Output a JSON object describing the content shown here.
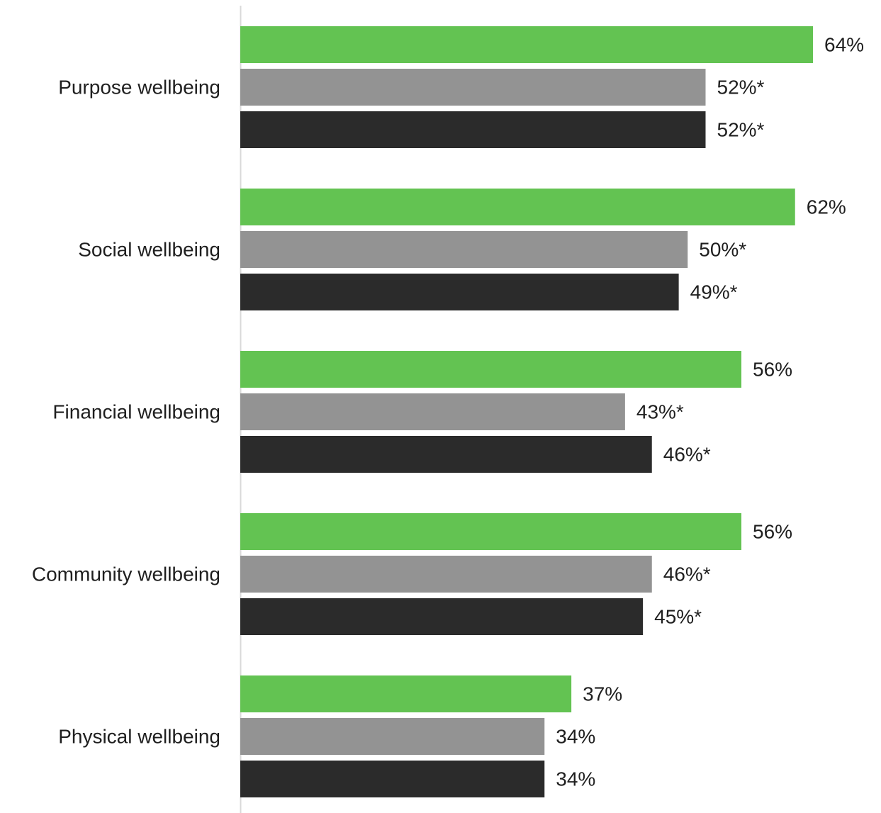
{
  "chart_data": {
    "type": "bar",
    "orientation": "horizontal",
    "categories": [
      "Purpose wellbeing",
      "Social wellbeing",
      "Financial wellbeing",
      "Community wellbeing",
      "Physical wellbeing"
    ],
    "series": [
      {
        "color": "#63c352",
        "values": [
          64,
          62,
          56,
          56,
          37
        ],
        "value_labels": [
          "64%",
          "62%",
          "56%",
          "56%",
          "37%"
        ]
      },
      {
        "color": "#939393",
        "values": [
          52,
          50,
          43,
          46,
          34
        ],
        "value_labels": [
          "52%*",
          "50%*",
          "43%*",
          "46%*",
          "34%"
        ]
      },
      {
        "color": "#2b2b2b",
        "values": [
          52,
          49,
          46,
          45,
          34
        ],
        "value_labels": [
          "52%*",
          "49%*",
          "46%*",
          "45%*",
          "34%"
        ]
      }
    ],
    "title": "",
    "xlabel": "",
    "ylabel": "",
    "xlim": [
      0,
      100
    ],
    "grid": false,
    "legend": "none",
    "axis_line_color": "#d9d9d9"
  }
}
